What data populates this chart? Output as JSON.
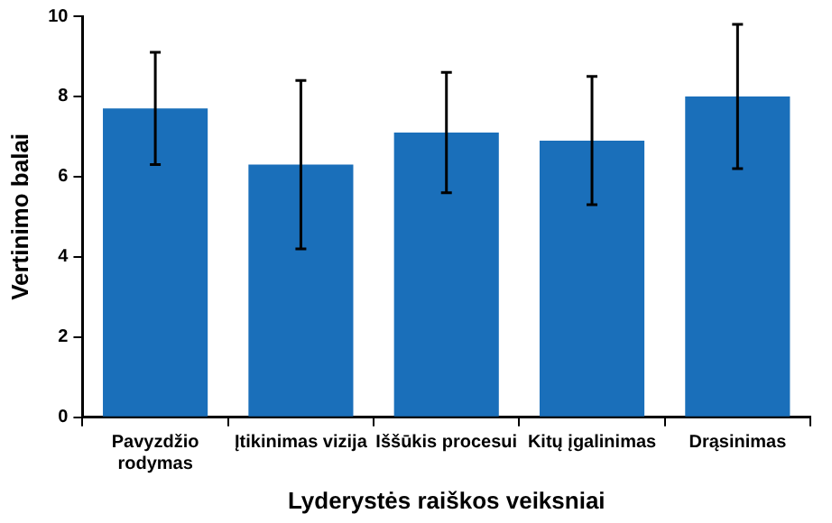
{
  "chart_data": {
    "type": "bar",
    "xlabel": "Lyderystės raiškos veiksniai",
    "ylabel": "Vertinimo balai",
    "categories": [
      "Pavyzdžio rodymas",
      "Įtikinimas vizija",
      "Iššūkis procesui",
      "Kitų įgalinimas",
      "Drąsinimas"
    ],
    "values": [
      7.7,
      6.3,
      7.1,
      6.9,
      8.0
    ],
    "errors": [
      1.4,
      2.1,
      1.5,
      1.6,
      1.8
    ],
    "color": "#1a6fba",
    "ylim": [
      0,
      10
    ],
    "yticks": [
      0,
      2,
      4,
      6,
      8,
      10
    ],
    "grid": false,
    "legend": false
  }
}
